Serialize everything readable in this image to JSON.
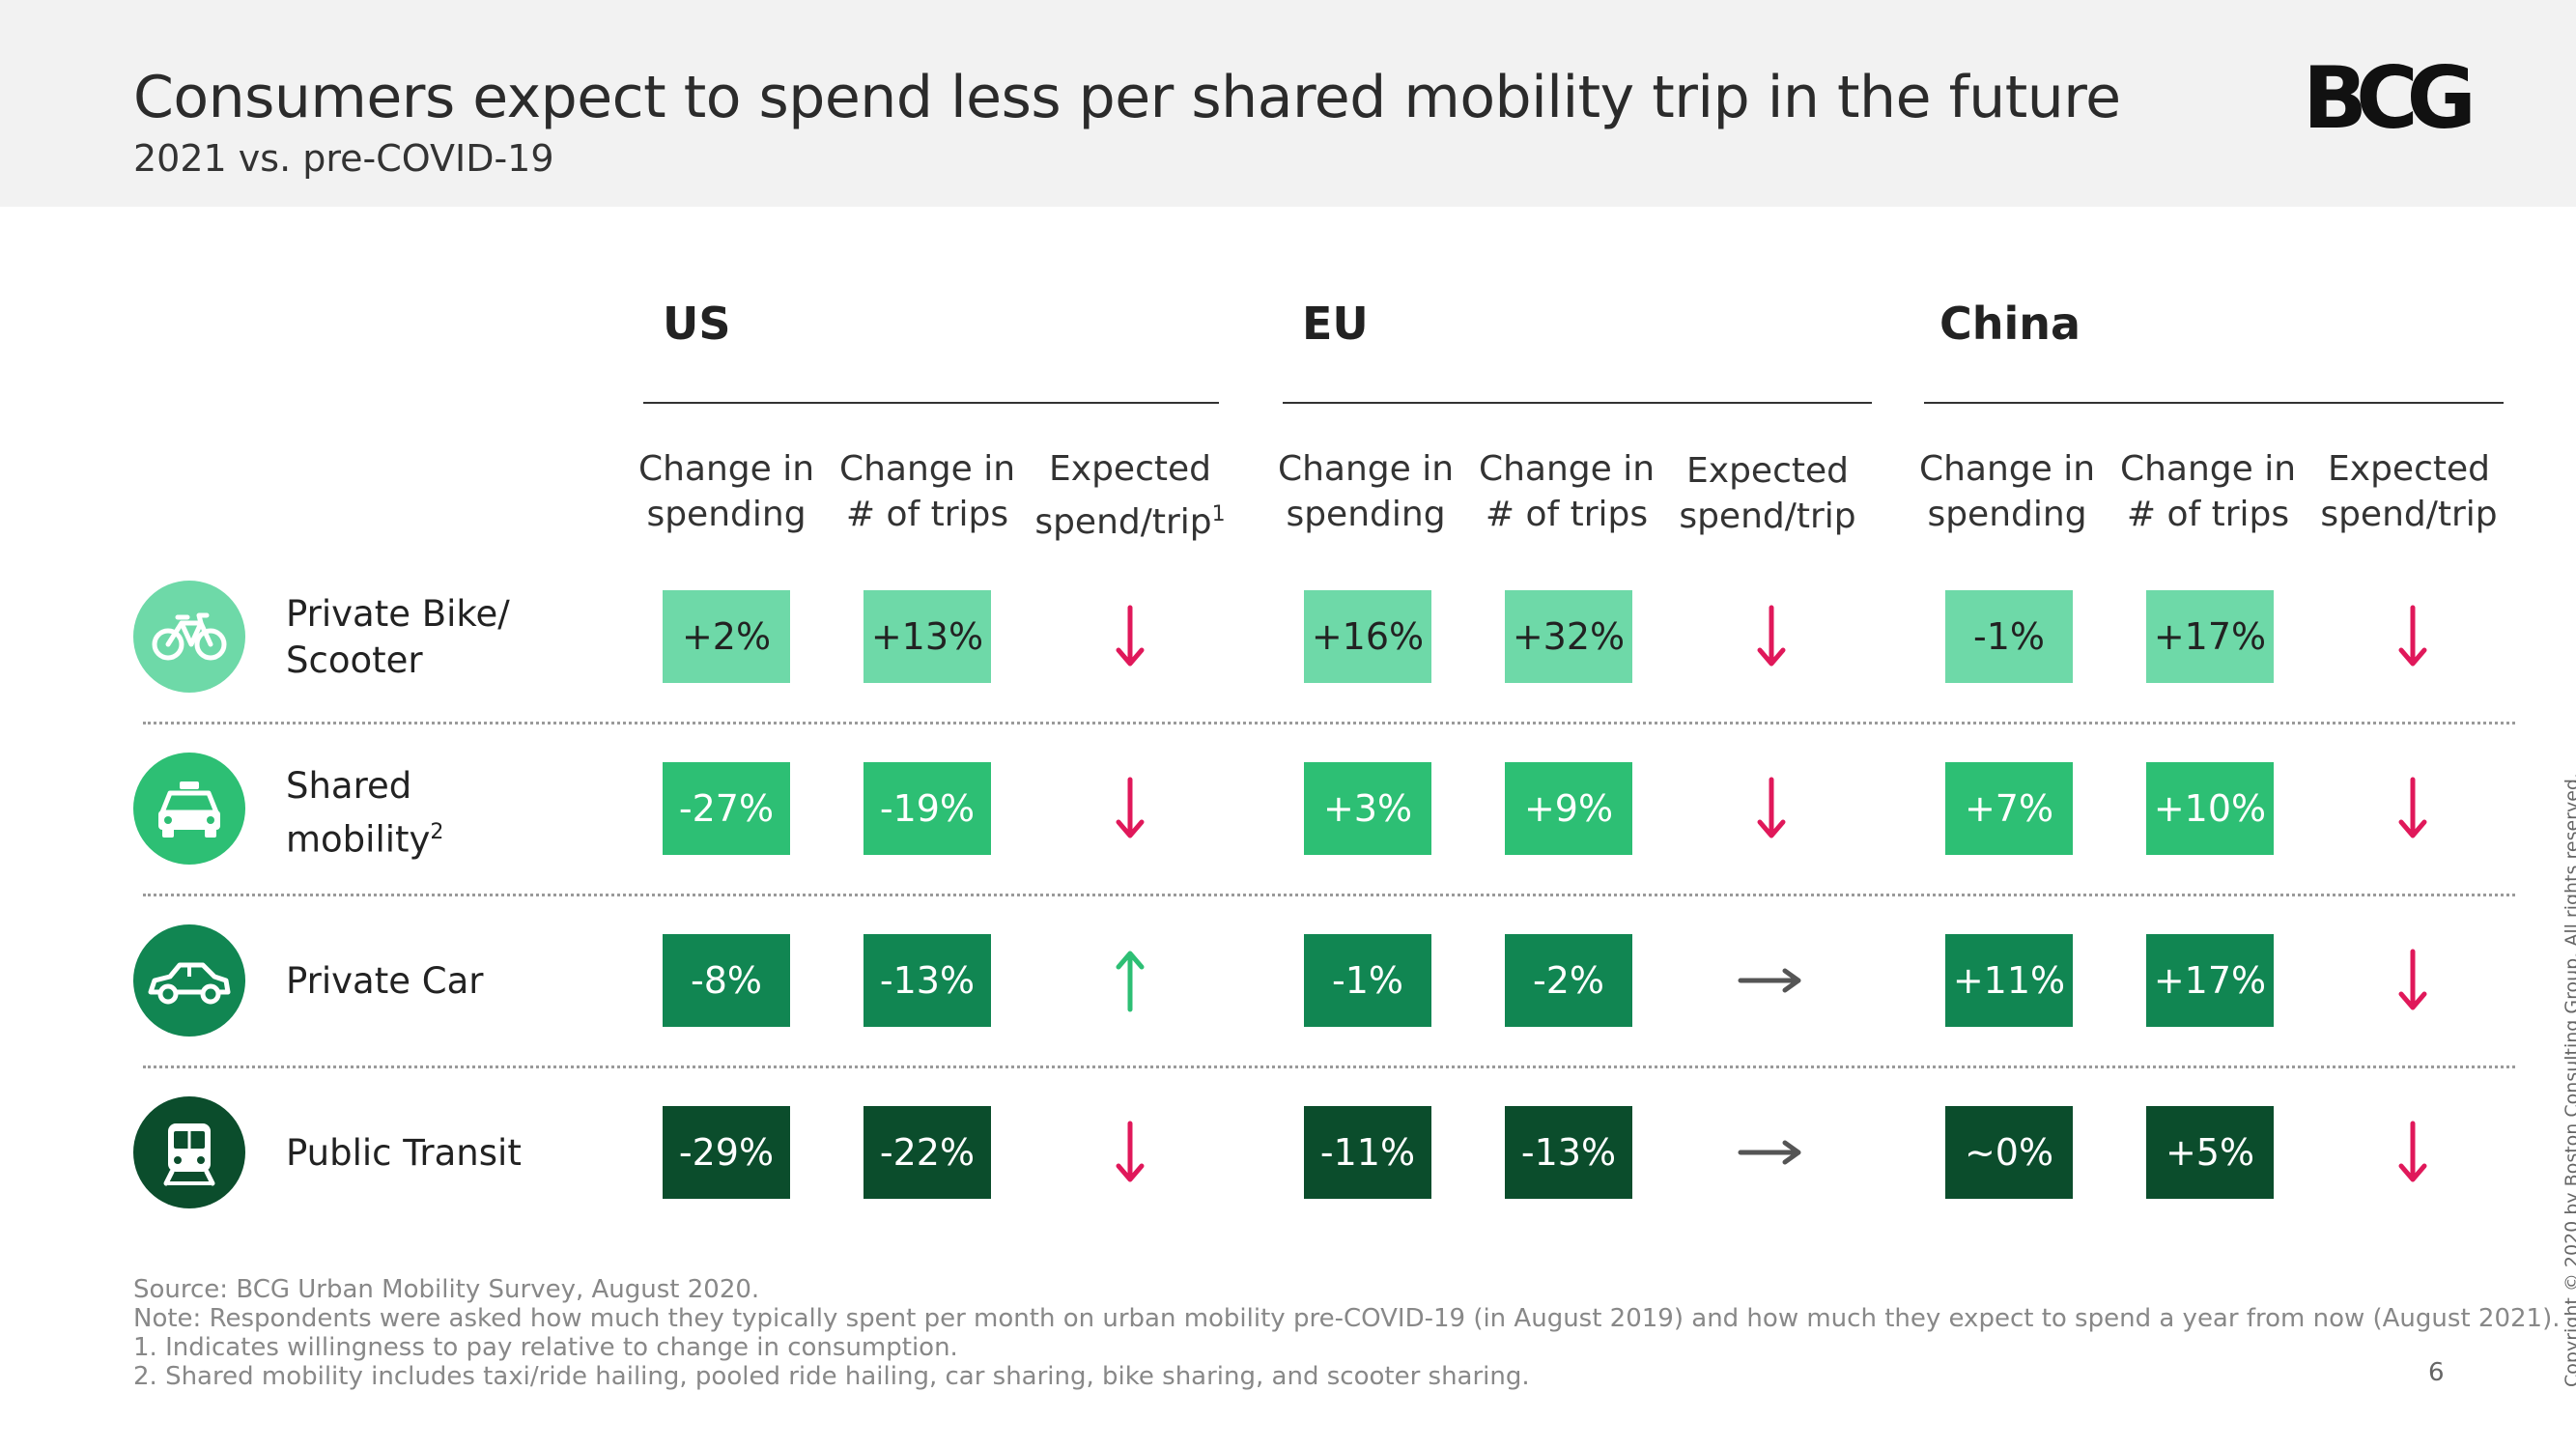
{
  "header": {
    "title": "Consumers expect to spend less per shared mobility trip in the future",
    "subtitle": "2021 vs. pre-COVID-19",
    "logo_text": "BCG"
  },
  "regions": [
    {
      "name": "US",
      "cols": [
        {
          "line1": "Change in",
          "line2": "spending",
          "sup": ""
        },
        {
          "line1": "Change in",
          "line2": "# of trips",
          "sup": ""
        },
        {
          "line1": "Expected",
          "line2": "spend/trip",
          "sup": "1"
        }
      ]
    },
    {
      "name": "EU",
      "cols": [
        {
          "line1": "Change in",
          "line2": "spending",
          "sup": ""
        },
        {
          "line1": "Change in",
          "line2": "# of trips",
          "sup": ""
        },
        {
          "line1": "Expected",
          "line2": "spend/trip",
          "sup": ""
        }
      ]
    },
    {
      "name": "China",
      "cols": [
        {
          "line1": "Change in",
          "line2": "spending",
          "sup": ""
        },
        {
          "line1": "Change in",
          "line2": "# of trips",
          "sup": ""
        },
        {
          "line1": "Expected",
          "line2": "spend/trip",
          "sup": ""
        }
      ]
    }
  ],
  "rows": [
    {
      "line1": "Private Bike/",
      "line2": "Scooter",
      "sup": "",
      "icon": "bicycle-icon",
      "color": "#6ed9a8",
      "us": [
        "+2%",
        "+13%"
      ],
      "us_trend": "down",
      "eu": [
        "+16%",
        "+32%"
      ],
      "eu_trend": "down",
      "cn": [
        "-1%",
        "+17%"
      ],
      "cn_trend": "down"
    },
    {
      "line1": "Shared",
      "line2": "mobility",
      "sup": "2",
      "icon": "taxi-icon",
      "color": "#2dbf74",
      "us": [
        "-27%",
        "-19%"
      ],
      "us_trend": "down",
      "eu": [
        "+3%",
        "+9%"
      ],
      "eu_trend": "down",
      "cn": [
        "+7%",
        "+10%"
      ],
      "cn_trend": "down"
    },
    {
      "line1": "Private Car",
      "line2": "",
      "sup": "",
      "icon": "car-icon",
      "color": "#118652",
      "us": [
        "-8%",
        "-13%"
      ],
      "us_trend": "up",
      "eu": [
        "-1%",
        "-2%"
      ],
      "eu_trend": "flat",
      "cn": [
        "+11%",
        "+17%"
      ],
      "cn_trend": "down"
    },
    {
      "line1": "Public Transit",
      "line2": "",
      "sup": "",
      "icon": "train-icon",
      "color": "#0b4d2c",
      "us": [
        "-29%",
        "-22%"
      ],
      "us_trend": "down",
      "eu": [
        "-11%",
        "-13%"
      ],
      "eu_trend": "flat",
      "cn": [
        "~0%",
        "+5%"
      ],
      "cn_trend": "down"
    }
  ],
  "colors": {
    "down": "#e0185a",
    "up": "#2dbf74",
    "flat": "#555555"
  },
  "footnotes": [
    "Source: BCG Urban Mobility Survey, August 2020.",
    "Note: Respondents were asked how much they typically spent per month on urban mobility pre-COVID-19 (in August 2019) and how much they expect to spend a year from now (August 2021).",
    "1. Indicates willingness to pay relative to change in consumption.",
    "2. Shared mobility includes taxi/ride hailing, pooled ride hailing, car sharing, bike sharing, and scooter sharing."
  ],
  "page_number": "6",
  "copyright": "Copyright © 2020 by Boston Consulting Group. All rights reserved."
}
